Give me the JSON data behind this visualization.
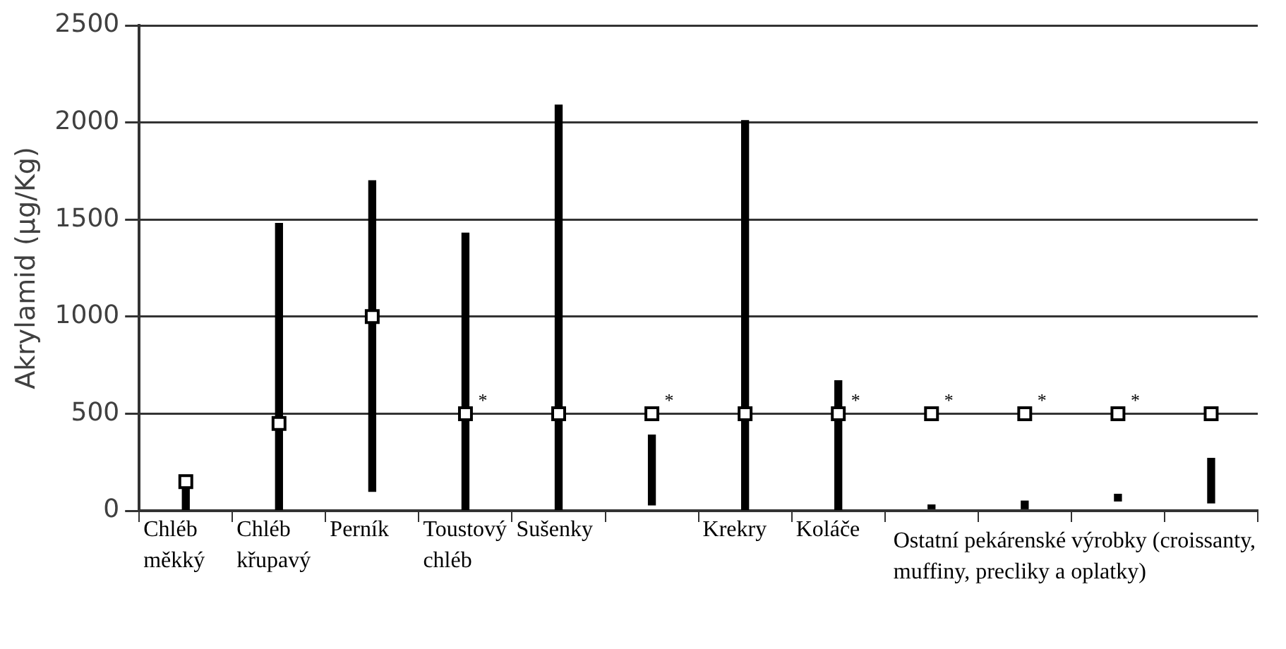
{
  "chart_data": {
    "type": "bar",
    "ylabel": "Akrylamid (µg/Kg)",
    "categories": [
      "Chléb měkký",
      "Chléb křupavý",
      "Perník",
      "Toustový chléb",
      "Sušenky",
      null,
      "Krekry",
      "Koláče",
      null,
      null,
      null,
      null
    ],
    "annotations": [
      "Ostatní pekárenské výrobky (croissanty, muffiny, precliky a oplatky)"
    ],
    "series": [
      {
        "base": [
          0,
          0,
          100,
          0,
          0,
          30,
          0,
          0,
          10,
          10,
          50,
          40
        ],
        "color": "#000000",
        "values": [
          120,
          1480,
          1600,
          1430,
          2090,
          360,
          2010,
          670,
          20,
          40,
          35,
          230
        ]
      },
      {
        "type": "scatter",
        "color": "#000000",
        "values": [
          150,
          450,
          1000,
          500,
          500,
          500,
          500,
          500,
          500,
          500,
          500,
          500
        ],
        "value_labels": [
          null,
          null,
          null,
          "*",
          null,
          "*",
          null,
          "*",
          "*",
          "*",
          "*",
          null
        ]
      }
    ],
    "ylim": [
      0,
      2500
    ],
    "yticks": [
      0,
      500,
      1000,
      1500,
      2000,
      2500
    ],
    "grid": "y",
    "legend": false,
    "marker": "square"
  }
}
